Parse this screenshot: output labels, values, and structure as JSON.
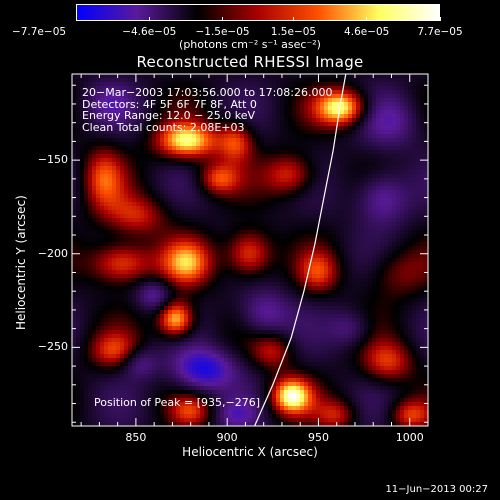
{
  "chart_data": {
    "type": "heatmap",
    "title": "Reconstructed RHESSI Image",
    "xlabel": "Heliocentric X (arcsec)",
    "ylabel": "Heliocentric Y (arcsec)",
    "xlim": [
      815,
      1010
    ],
    "ylim": [
      -292,
      -104
    ],
    "x_ticks": [
      {
        "value": 850,
        "label": "850"
      },
      {
        "value": 900,
        "label": "900"
      },
      {
        "value": 950,
        "label": "950"
      },
      {
        "value": 1000,
        "label": "1000"
      }
    ],
    "y_ticks": [
      {
        "value": -150,
        "label": "−150"
      },
      {
        "value": -200,
        "label": "−200"
      },
      {
        "value": -250,
        "label": "−250"
      }
    ],
    "colorbar": {
      "range": [
        -7.7e-05,
        7.7e-05
      ],
      "tick_labels": [
        "−7.7e−05",
        "−4.6e−05",
        "−1.5e−05",
        "1.5e−05",
        "4.6e−05",
        "7.7e−05"
      ],
      "tick_values": [
        -7.7e-05,
        -4.6e-05,
        -1.5e-05,
        1.5e-05,
        4.6e-05,
        7.7e-05
      ],
      "units": "(photons cm⁻² s⁻¹ asec⁻²)",
      "colors": [
        "#0000ff",
        "#5a1a9a",
        "#000000",
        "#aa0000",
        "#ff5000",
        "#ffff60",
        "#ffffff"
      ]
    },
    "annotations": [
      "20−Mar−2003 17:03:56.000 to 17:08:26.000",
      "Detectors: 4F 5F 6F 7F 8F, Att 0",
      "Energy Range: 12.0 − 25.0 keV",
      "Clean     Total counts: 2.08E+03"
    ],
    "peak_label": "Position of Peak = [935,−276]",
    "peak": {
      "x": 935,
      "y": -276
    },
    "limb_curve": [
      [
        915,
        -292
      ],
      [
        925,
        -270
      ],
      [
        935,
        -245
      ],
      [
        942,
        -220
      ],
      [
        948,
        -195
      ],
      [
        953,
        -170
      ],
      [
        958,
        -145
      ],
      [
        962,
        -120
      ],
      [
        965,
        -104
      ]
    ],
    "blobs": [
      {
        "x": 963,
        "y": -122,
        "sx": 10,
        "sy": 7,
        "a": 1.0
      },
      {
        "x": 878,
        "y": -140,
        "sx": 12,
        "sy": 7,
        "a": 0.95
      },
      {
        "x": 905,
        "y": -140,
        "sx": 7,
        "sy": 8,
        "a": 0.6
      },
      {
        "x": 832,
        "y": -160,
        "sx": 8,
        "sy": 12,
        "a": 0.55
      },
      {
        "x": 895,
        "y": -160,
        "sx": 8,
        "sy": 6,
        "a": 0.6
      },
      {
        "x": 935,
        "y": -158,
        "sx": 10,
        "sy": 8,
        "a": 0.6
      },
      {
        "x": 850,
        "y": -180,
        "sx": 12,
        "sy": 8,
        "a": 0.5
      },
      {
        "x": 985,
        "y": -170,
        "sx": 10,
        "sy": 10,
        "a": -0.55
      },
      {
        "x": 842,
        "y": -205,
        "sx": 12,
        "sy": 8,
        "a": 0.75
      },
      {
        "x": 878,
        "y": -205,
        "sx": 10,
        "sy": 9,
        "a": 0.7
      },
      {
        "x": 912,
        "y": -200,
        "sx": 9,
        "sy": 9,
        "a": 0.75
      },
      {
        "x": 950,
        "y": -210,
        "sx": 8,
        "sy": 8,
        "a": 0.5
      },
      {
        "x": 993,
        "y": -210,
        "sx": 12,
        "sy": 10,
        "a": 0.35
      },
      {
        "x": 860,
        "y": -222,
        "sx": 7,
        "sy": 6,
        "a": -0.45
      },
      {
        "x": 872,
        "y": -235,
        "sx": 7,
        "sy": 7,
        "a": 1.0
      },
      {
        "x": 920,
        "y": -232,
        "sx": 10,
        "sy": 9,
        "a": -0.5
      },
      {
        "x": 838,
        "y": -252,
        "sx": 10,
        "sy": 7,
        "a": 0.5
      },
      {
        "x": 887,
        "y": -262,
        "sx": 12,
        "sy": 8,
        "a": -0.75
      },
      {
        "x": 925,
        "y": -252,
        "sx": 8,
        "sy": 7,
        "a": 0.45
      },
      {
        "x": 968,
        "y": -240,
        "sx": 8,
        "sy": 7,
        "a": -0.35
      },
      {
        "x": 988,
        "y": -258,
        "sx": 10,
        "sy": 8,
        "a": 0.55
      },
      {
        "x": 852,
        "y": -258,
        "sx": 7,
        "sy": 6,
        "a": -0.4
      },
      {
        "x": 935,
        "y": -276,
        "sx": 8,
        "sy": 7,
        "a": 1.0
      },
      {
        "x": 960,
        "y": -286,
        "sx": 8,
        "sy": 6,
        "a": 0.45
      },
      {
        "x": 880,
        "y": -284,
        "sx": 8,
        "sy": 6,
        "a": 0.45
      },
      {
        "x": 1000,
        "y": -286,
        "sx": 8,
        "sy": 6,
        "a": 0.55
      },
      {
        "x": 905,
        "y": -286,
        "sx": 8,
        "sy": 6,
        "a": -0.35
      },
      {
        "x": 990,
        "y": -130,
        "sx": 12,
        "sy": 10,
        "a": -0.35
      },
      {
        "x": 835,
        "y": -120,
        "sx": 10,
        "sy": 8,
        "a": -0.3
      }
    ]
  },
  "footer_timestamp": "11−Jun−2013 00:27"
}
